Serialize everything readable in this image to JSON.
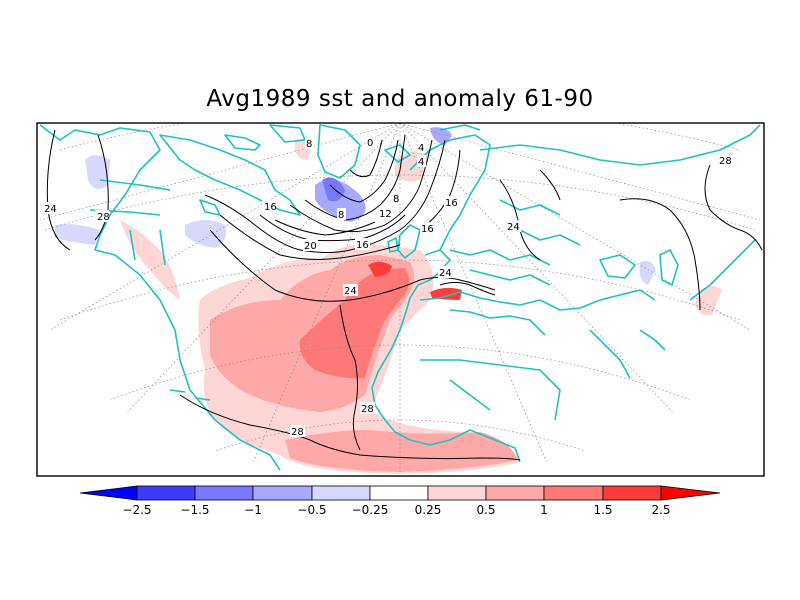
{
  "title": "Avg1989 sst and anomaly 61-90",
  "contour_labels": [
    "24",
    "28",
    "16",
    "8",
    "0",
    "4",
    "8",
    "12",
    "16",
    "20",
    "16",
    "24",
    "28",
    "16",
    "24",
    "24",
    "28",
    "28",
    "8",
    "4"
  ],
  "colorbar": {
    "labels": [
      "−2.5",
      "−1.5",
      "−1",
      "−0.5",
      "−0.25",
      "0.25",
      "0.5",
      "1",
      "1.5",
      "2.5"
    ],
    "colors": [
      "#0000ff",
      "#3c3cff",
      "#7878ff",
      "#a8a8ff",
      "#d8d8ff",
      "#ffffff",
      "#ffd6d6",
      "#ffa8a8",
      "#ff7878",
      "#ff3c3c",
      "#ff0000"
    ]
  },
  "colors": {
    "coast": "#1ec2c2",
    "contour": "#000000",
    "grid": "#8a8a8a"
  }
}
